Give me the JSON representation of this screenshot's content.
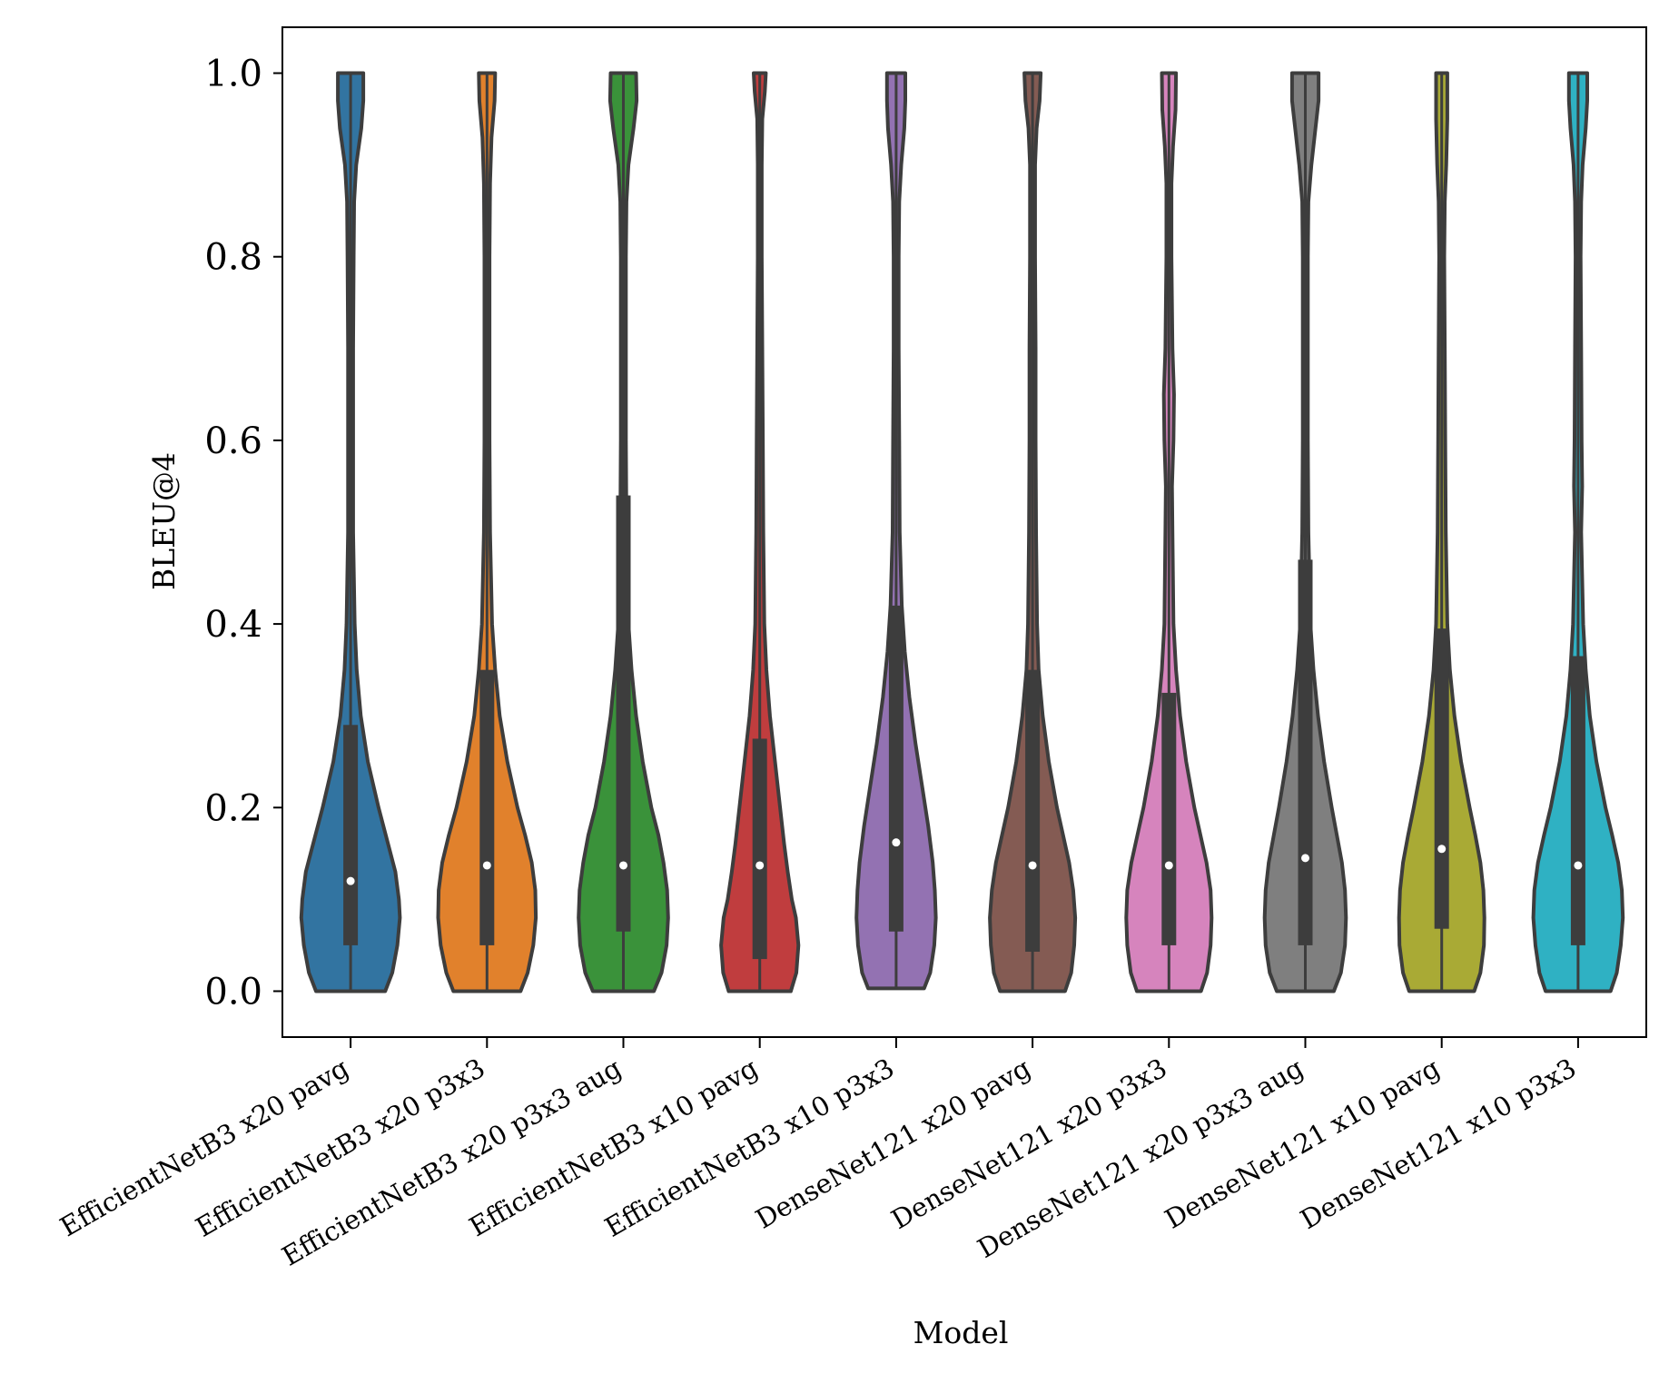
{
  "chart_data": {
    "type": "violin",
    "title": "",
    "xlabel": "Model",
    "ylabel": "BLEU@4",
    "ylim": [
      -0.05,
      1.05
    ],
    "yticks": [
      0.0,
      0.2,
      0.4,
      0.6,
      0.8,
      1.0
    ],
    "ytick_labels": [
      "0.0",
      "0.2",
      "0.4",
      "0.6",
      "0.8",
      "1.0"
    ],
    "grid": false,
    "legend": "none",
    "outline_color": "#3d3d3d",
    "median_color": "#ffffff",
    "categories": [
      "EfficientNetB3 x20 pavg",
      "EfficientNetB3 x20 p3x3",
      "EfficientNetB3 x20 p3x3 aug",
      "EfficientNetB3 x10 pavg",
      "EfficientNetB3 x10 p3x3",
      "DenseNet121 x20 pavg",
      "DenseNet121 x20 p3x3",
      "DenseNet121 x20 p3x3 aug",
      "DenseNet121 x10 pavg",
      "DenseNet121 x10 p3x3"
    ],
    "series": [
      {
        "name": "EfficientNetB3 x20 pavg",
        "color": "#3274a1",
        "median": 0.12,
        "q1": 0.05,
        "q3": 0.29,
        "min": 0.0,
        "max": 1.0,
        "density": [
          [
            0.0,
            0.68
          ],
          [
            0.02,
            0.82
          ],
          [
            0.05,
            0.92
          ],
          [
            0.08,
            0.97
          ],
          [
            0.1,
            0.95
          ],
          [
            0.13,
            0.88
          ],
          [
            0.16,
            0.74
          ],
          [
            0.2,
            0.55
          ],
          [
            0.25,
            0.34
          ],
          [
            0.3,
            0.2
          ],
          [
            0.35,
            0.12
          ],
          [
            0.4,
            0.08
          ],
          [
            0.5,
            0.05
          ],
          [
            0.6,
            0.05
          ],
          [
            0.7,
            0.05
          ],
          [
            0.8,
            0.06
          ],
          [
            0.86,
            0.07
          ],
          [
            0.9,
            0.11
          ],
          [
            0.94,
            0.21
          ],
          [
            0.97,
            0.25
          ],
          [
            1.0,
            0.25
          ]
        ]
      },
      {
        "name": "EfficientNetB3 x20 p3x3",
        "color": "#e1812c",
        "median": 0.137,
        "q1": 0.05,
        "q3": 0.35,
        "min": 0.0,
        "max": 1.0,
        "density": [
          [
            0.0,
            0.66
          ],
          [
            0.02,
            0.8
          ],
          [
            0.05,
            0.91
          ],
          [
            0.08,
            0.96
          ],
          [
            0.11,
            0.95
          ],
          [
            0.14,
            0.88
          ],
          [
            0.17,
            0.75
          ],
          [
            0.2,
            0.6
          ],
          [
            0.25,
            0.4
          ],
          [
            0.3,
            0.25
          ],
          [
            0.35,
            0.16
          ],
          [
            0.4,
            0.1
          ],
          [
            0.5,
            0.06
          ],
          [
            0.6,
            0.05
          ],
          [
            0.7,
            0.05
          ],
          [
            0.8,
            0.05
          ],
          [
            0.88,
            0.06
          ],
          [
            0.93,
            0.09
          ],
          [
            0.97,
            0.15
          ],
          [
            1.0,
            0.16
          ]
        ]
      },
      {
        "name": "EfficientNetB3 x20 p3x3 aug",
        "color": "#3a923a",
        "median": 0.137,
        "q1": 0.065,
        "q3": 0.54,
        "min": 0.0,
        "max": 1.0,
        "density": [
          [
            0.0,
            0.6
          ],
          [
            0.02,
            0.75
          ],
          [
            0.05,
            0.85
          ],
          [
            0.08,
            0.88
          ],
          [
            0.11,
            0.86
          ],
          [
            0.14,
            0.79
          ],
          [
            0.17,
            0.69
          ],
          [
            0.2,
            0.55
          ],
          [
            0.25,
            0.38
          ],
          [
            0.3,
            0.25
          ],
          [
            0.35,
            0.16
          ],
          [
            0.4,
            0.1
          ],
          [
            0.5,
            0.06
          ],
          [
            0.6,
            0.05
          ],
          [
            0.7,
            0.05
          ],
          [
            0.8,
            0.05
          ],
          [
            0.86,
            0.06
          ],
          [
            0.9,
            0.1
          ],
          [
            0.94,
            0.2
          ],
          [
            0.97,
            0.26
          ],
          [
            1.0,
            0.25
          ]
        ]
      },
      {
        "name": "EfficientNetB3 x10 pavg",
        "color": "#c03d3e",
        "median": 0.137,
        "q1": 0.035,
        "q3": 0.275,
        "min": 0.0,
        "max": 1.0,
        "density": [
          [
            0.0,
            0.61
          ],
          [
            0.02,
            0.72
          ],
          [
            0.05,
            0.76
          ],
          [
            0.08,
            0.71
          ],
          [
            0.1,
            0.63
          ],
          [
            0.13,
            0.55
          ],
          [
            0.16,
            0.48
          ],
          [
            0.2,
            0.4
          ],
          [
            0.25,
            0.3
          ],
          [
            0.3,
            0.2
          ],
          [
            0.35,
            0.13
          ],
          [
            0.4,
            0.09
          ],
          [
            0.5,
            0.07
          ],
          [
            0.6,
            0.06
          ],
          [
            0.7,
            0.05
          ],
          [
            0.8,
            0.04
          ],
          [
            0.9,
            0.04
          ],
          [
            0.95,
            0.05
          ],
          [
            0.98,
            0.1
          ],
          [
            1.0,
            0.12
          ]
        ]
      },
      {
        "name": "EfficientNetB3 x10 p3x3",
        "color": "#9372b2",
        "median": 0.162,
        "q1": 0.065,
        "q3": 0.42,
        "min": 0.003,
        "max": 1.0,
        "density": [
          [
            0.003,
            0.55
          ],
          [
            0.02,
            0.67
          ],
          [
            0.05,
            0.75
          ],
          [
            0.08,
            0.78
          ],
          [
            0.11,
            0.76
          ],
          [
            0.14,
            0.72
          ],
          [
            0.18,
            0.63
          ],
          [
            0.22,
            0.52
          ],
          [
            0.27,
            0.38
          ],
          [
            0.32,
            0.26
          ],
          [
            0.37,
            0.17
          ],
          [
            0.42,
            0.11
          ],
          [
            0.5,
            0.07
          ],
          [
            0.6,
            0.06
          ],
          [
            0.7,
            0.05
          ],
          [
            0.8,
            0.05
          ],
          [
            0.86,
            0.06
          ],
          [
            0.9,
            0.1
          ],
          [
            0.94,
            0.16
          ],
          [
            0.97,
            0.18
          ],
          [
            1.0,
            0.18
          ]
        ]
      },
      {
        "name": "DenseNet121 x20 pavg",
        "color": "#845b53",
        "median": 0.137,
        "q1": 0.043,
        "q3": 0.35,
        "min": 0.0,
        "max": 1.0,
        "density": [
          [
            0.0,
            0.64
          ],
          [
            0.02,
            0.76
          ],
          [
            0.05,
            0.82
          ],
          [
            0.08,
            0.84
          ],
          [
            0.11,
            0.8
          ],
          [
            0.14,
            0.72
          ],
          [
            0.17,
            0.6
          ],
          [
            0.2,
            0.48
          ],
          [
            0.25,
            0.32
          ],
          [
            0.3,
            0.2
          ],
          [
            0.35,
            0.12
          ],
          [
            0.4,
            0.09
          ],
          [
            0.5,
            0.07
          ],
          [
            0.6,
            0.06
          ],
          [
            0.7,
            0.06
          ],
          [
            0.8,
            0.05
          ],
          [
            0.9,
            0.05
          ],
          [
            0.94,
            0.08
          ],
          [
            0.97,
            0.14
          ],
          [
            1.0,
            0.16
          ]
        ]
      },
      {
        "name": "DenseNet121 x20 p3x3",
        "color": "#d684bd",
        "median": 0.137,
        "q1": 0.05,
        "q3": 0.325,
        "min": 0.0,
        "max": 1.0,
        "density": [
          [
            0.0,
            0.63
          ],
          [
            0.02,
            0.75
          ],
          [
            0.05,
            0.82
          ],
          [
            0.08,
            0.84
          ],
          [
            0.11,
            0.82
          ],
          [
            0.14,
            0.74
          ],
          [
            0.17,
            0.62
          ],
          [
            0.2,
            0.5
          ],
          [
            0.25,
            0.34
          ],
          [
            0.3,
            0.22
          ],
          [
            0.35,
            0.14
          ],
          [
            0.4,
            0.09
          ],
          [
            0.5,
            0.07
          ],
          [
            0.55,
            0.06
          ],
          [
            0.6,
            0.09
          ],
          [
            0.65,
            0.1
          ],
          [
            0.7,
            0.07
          ],
          [
            0.8,
            0.05
          ],
          [
            0.88,
            0.05
          ],
          [
            0.92,
            0.08
          ],
          [
            0.96,
            0.13
          ],
          [
            1.0,
            0.14
          ]
        ]
      },
      {
        "name": "DenseNet121 x20 p3x3 aug",
        "color": "#7f7f7f",
        "median": 0.145,
        "q1": 0.05,
        "q3": 0.47,
        "min": 0.0,
        "max": 1.0,
        "density": [
          [
            0.0,
            0.56
          ],
          [
            0.02,
            0.7
          ],
          [
            0.05,
            0.78
          ],
          [
            0.08,
            0.8
          ],
          [
            0.11,
            0.78
          ],
          [
            0.14,
            0.72
          ],
          [
            0.17,
            0.62
          ],
          [
            0.2,
            0.52
          ],
          [
            0.25,
            0.37
          ],
          [
            0.3,
            0.25
          ],
          [
            0.35,
            0.16
          ],
          [
            0.4,
            0.1
          ],
          [
            0.5,
            0.06
          ],
          [
            0.6,
            0.05
          ],
          [
            0.7,
            0.05
          ],
          [
            0.8,
            0.05
          ],
          [
            0.86,
            0.06
          ],
          [
            0.9,
            0.12
          ],
          [
            0.94,
            0.2
          ],
          [
            0.97,
            0.26
          ],
          [
            1.0,
            0.26
          ]
        ]
      },
      {
        "name": "DenseNet121 x10 pavg",
        "color": "#a9aa35",
        "median": 0.155,
        "q1": 0.068,
        "q3": 0.395,
        "min": 0.0,
        "max": 1.0,
        "density": [
          [
            0.0,
            0.64
          ],
          [
            0.02,
            0.76
          ],
          [
            0.05,
            0.83
          ],
          [
            0.08,
            0.84
          ],
          [
            0.11,
            0.82
          ],
          [
            0.14,
            0.76
          ],
          [
            0.17,
            0.66
          ],
          [
            0.2,
            0.55
          ],
          [
            0.25,
            0.38
          ],
          [
            0.3,
            0.25
          ],
          [
            0.35,
            0.16
          ],
          [
            0.4,
            0.11
          ],
          [
            0.5,
            0.08
          ],
          [
            0.6,
            0.07
          ],
          [
            0.7,
            0.06
          ],
          [
            0.8,
            0.05
          ],
          [
            0.86,
            0.06
          ],
          [
            0.9,
            0.09
          ],
          [
            0.95,
            0.11
          ],
          [
            1.0,
            0.11
          ]
        ]
      },
      {
        "name": "DenseNet121 x10 p3x3",
        "color": "#2fb1c3",
        "median": 0.137,
        "q1": 0.05,
        "q3": 0.365,
        "min": 0.0,
        "max": 1.0,
        "density": [
          [
            0.0,
            0.64
          ],
          [
            0.02,
            0.76
          ],
          [
            0.05,
            0.84
          ],
          [
            0.08,
            0.88
          ],
          [
            0.11,
            0.86
          ],
          [
            0.14,
            0.79
          ],
          [
            0.17,
            0.67
          ],
          [
            0.2,
            0.54
          ],
          [
            0.25,
            0.36
          ],
          [
            0.3,
            0.23
          ],
          [
            0.35,
            0.15
          ],
          [
            0.4,
            0.1
          ],
          [
            0.5,
            0.06
          ],
          [
            0.55,
            0.08
          ],
          [
            0.6,
            0.07
          ],
          [
            0.7,
            0.06
          ],
          [
            0.8,
            0.05
          ],
          [
            0.86,
            0.06
          ],
          [
            0.9,
            0.09
          ],
          [
            0.94,
            0.15
          ],
          [
            0.97,
            0.18
          ],
          [
            1.0,
            0.18
          ]
        ]
      }
    ]
  }
}
